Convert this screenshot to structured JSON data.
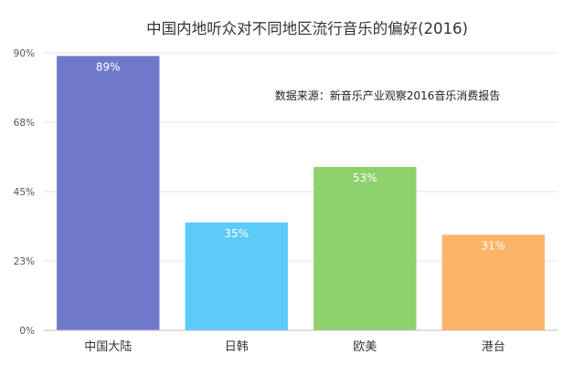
{
  "chart_data": {
    "type": "bar",
    "title": "中国内地听众对不同地区流行音乐的偏好(2016)",
    "annotation": "数据来源：新音乐产业观察2016音乐消费报告",
    "categories": [
      "中国大陆",
      "日韩",
      "欧美",
      "港台"
    ],
    "values": [
      89,
      35,
      53,
      31
    ],
    "data_labels": [
      "89%",
      "35%",
      "53%",
      "31%"
    ],
    "colors": [
      "#7079c9",
      "#5ccbfa",
      "#8fd16c",
      "#fdb469"
    ],
    "y_ticks": [
      0,
      22.5,
      45,
      67.5,
      90
    ],
    "y_tick_labels": [
      "0%",
      "23%",
      "45%",
      "68%",
      "90%"
    ],
    "ylim": [
      0,
      90
    ],
    "grid": true,
    "xlabel": "",
    "ylabel": ""
  }
}
